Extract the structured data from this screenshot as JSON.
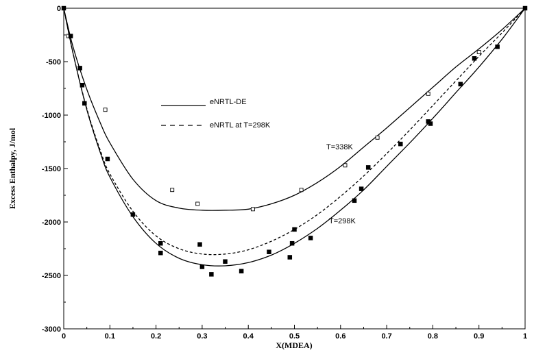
{
  "chart_data": {
    "type": "scatter",
    "xlabel": "X(MDEA)",
    "ylabel": "Excess Enthalpy, J/mol",
    "xlim": [
      0,
      1
    ],
    "ylim": [
      -3000,
      0
    ],
    "xticks": [
      "0",
      "0.1",
      "0.2",
      "0.3",
      "0.4",
      "0.5",
      "0.6",
      "0.7",
      "0.8",
      "0.9",
      "1"
    ],
    "yticks": [
      "0",
      "-500",
      "-1000",
      "-1500",
      "-2000",
      "-2500",
      "-3000"
    ],
    "grid": false,
    "legend_position": "upper-left-inside",
    "legend": [
      {
        "label": "eNRTL-DE",
        "style": "solid"
      },
      {
        "label": "eNRTL at T=298K",
        "style": "dashed"
      }
    ],
    "annotations": [
      {
        "text": "T=338K",
        "x": 0.57,
        "y": -1300
      },
      {
        "text": "T=298K",
        "x": 0.57,
        "y": -2000
      }
    ],
    "series": [
      {
        "name": "eNRTL-DE",
        "style": "solid",
        "x": [
          0,
          0.02,
          0.05,
          0.08,
          0.1,
          0.15,
          0.2,
          0.25,
          0.3,
          0.35,
          0.4,
          0.45,
          0.5,
          0.55,
          0.6,
          0.65,
          0.7,
          0.75,
          0.8,
          0.85,
          0.9,
          0.95,
          1.0
        ],
        "y": [
          0,
          -360,
          -760,
          -1080,
          -1260,
          -1600,
          -1800,
          -1870,
          -1890,
          -1890,
          -1880,
          -1830,
          -1750,
          -1630,
          -1480,
          -1300,
          -1120,
          -930,
          -740,
          -550,
          -380,
          -200,
          0
        ]
      },
      {
        "name": "eNRTL-DE",
        "style": "solid",
        "x": [
          0,
          0.02,
          0.05,
          0.08,
          0.1,
          0.15,
          0.2,
          0.25,
          0.3,
          0.35,
          0.4,
          0.45,
          0.5,
          0.55,
          0.6,
          0.65,
          0.7,
          0.75,
          0.8,
          0.85,
          0.9,
          0.95,
          1.0
        ],
        "y": [
          0,
          -420,
          -950,
          -1360,
          -1580,
          -1950,
          -2200,
          -2340,
          -2400,
          -2410,
          -2380,
          -2310,
          -2200,
          -2060,
          -1890,
          -1700,
          -1480,
          -1260,
          -1030,
          -790,
          -550,
          -290,
          0
        ]
      },
      {
        "name": "eNRTL at T=298K",
        "style": "dashed",
        "x": [
          0,
          0.02,
          0.05,
          0.08,
          0.1,
          0.15,
          0.2,
          0.25,
          0.3,
          0.35,
          0.4,
          0.45,
          0.5,
          0.55,
          0.6,
          0.65,
          0.7,
          0.75,
          0.8,
          0.85,
          0.9,
          0.95,
          1.0
        ],
        "y": [
          0,
          -420,
          -940,
          -1340,
          -1550,
          -1900,
          -2130,
          -2250,
          -2300,
          -2300,
          -2260,
          -2180,
          -2070,
          -1930,
          -1760,
          -1570,
          -1360,
          -1140,
          -910,
          -680,
          -450,
          -230,
          0
        ]
      },
      {
        "name": "",
        "marker": "open-square",
        "x": [
          0,
          0.01,
          0.09,
          0.235,
          0.29,
          0.41,
          0.515,
          0.61,
          0.68,
          0.79,
          0.9,
          1.0
        ],
        "y": [
          0,
          -260,
          -950,
          -1700,
          -1830,
          -1880,
          -1700,
          -1470,
          -1210,
          -800,
          -410,
          0
        ]
      },
      {
        "name": "",
        "marker": "filled-square",
        "x": [
          0,
          0.015,
          0.035,
          0.04,
          0.045,
          0.095,
          0.15,
          0.21,
          0.21,
          0.295,
          0.3,
          0.32,
          0.35,
          0.385,
          0.445,
          0.49,
          0.495,
          0.5,
          0.535,
          0.63,
          0.645,
          0.66,
          0.73,
          0.79,
          0.795,
          0.86,
          0.89,
          0.94,
          1.0
        ],
        "y": [
          0,
          -260,
          -560,
          -720,
          -890,
          -1410,
          -1930,
          -2200,
          -2290,
          -2210,
          -2420,
          -2490,
          -2370,
          -2460,
          -2280,
          -2330,
          -2200,
          -2070,
          -2150,
          -1800,
          -1690,
          -1490,
          -1270,
          -1060,
          -1080,
          -710,
          -470,
          -360,
          0
        ]
      }
    ]
  }
}
